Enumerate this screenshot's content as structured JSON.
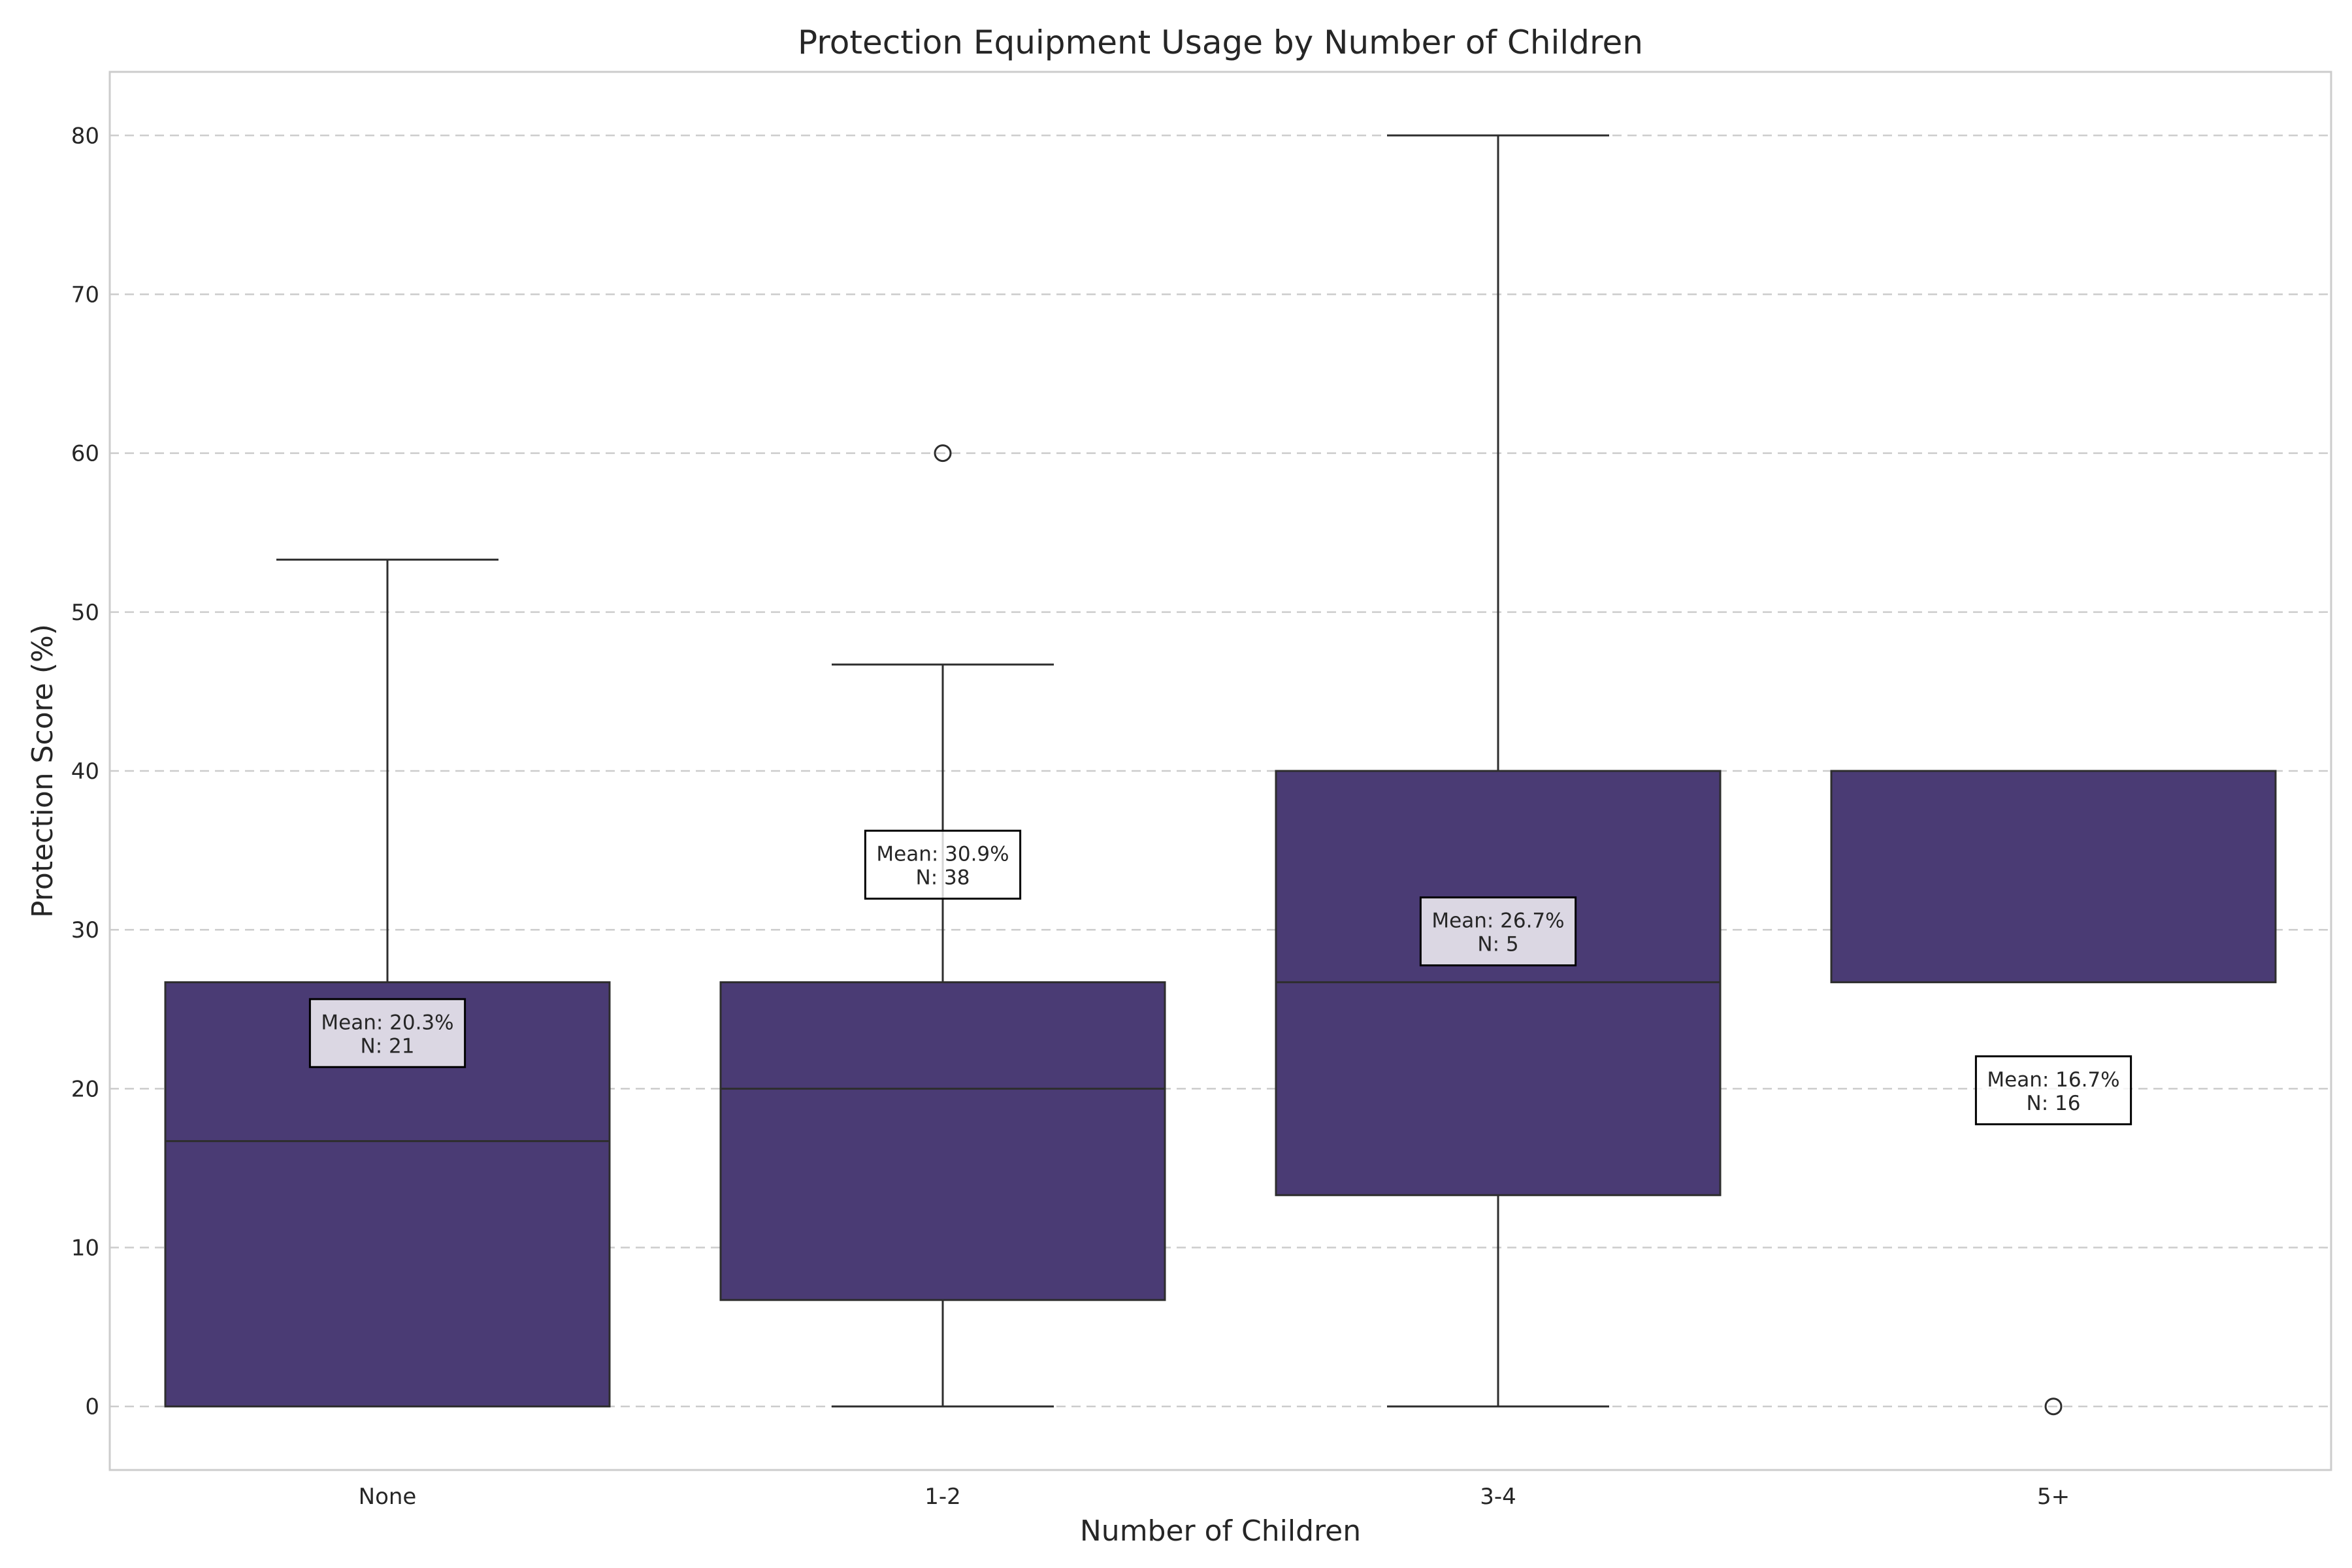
{
  "chart_data": {
    "type": "box",
    "title": "Protection Equipment Usage by Number of Children",
    "xlabel": "Number of Children",
    "ylabel": "Protection Score (%)",
    "categories": [
      "None",
      "1-2",
      "3-4",
      "5+"
    ],
    "ylim": [
      -4,
      84
    ],
    "yticks": [
      0,
      10,
      20,
      30,
      40,
      50,
      60,
      70,
      80
    ],
    "grid": "y-dashed",
    "box_color": "#4a3b74",
    "boxes": [
      {
        "category": "None",
        "whisker_low": 0,
        "q1": 0,
        "median": 16.7,
        "q3": 26.7,
        "whisker_high": 53.3,
        "outliers": [],
        "annotation": {
          "mean": "Mean: 20.3%",
          "n": "N: 21",
          "y": 23.5
        }
      },
      {
        "category": "1-2",
        "whisker_low": 0,
        "q1": 6.7,
        "median": 20,
        "q3": 26.7,
        "whisker_high": 46.7,
        "outliers": [
          60
        ],
        "annotation": {
          "mean": "Mean: 30.9%",
          "n": "N: 38",
          "y": 34.1
        }
      },
      {
        "category": "3-4",
        "whisker_low": 0,
        "q1": 13.3,
        "median": 26.7,
        "q3": 40,
        "whisker_high": 80,
        "outliers": [],
        "annotation": {
          "mean": "Mean: 26.7%",
          "n": "N: 5",
          "y": 29.9
        }
      },
      {
        "category": "5+",
        "whisker_low": 26.7,
        "q1": 26.7,
        "median": 40,
        "q3": 40,
        "whisker_high": 40,
        "outliers": [
          0
        ],
        "annotation": {
          "mean": "Mean: 16.7%",
          "n": "N: 16",
          "y": 19.9
        }
      }
    ]
  }
}
